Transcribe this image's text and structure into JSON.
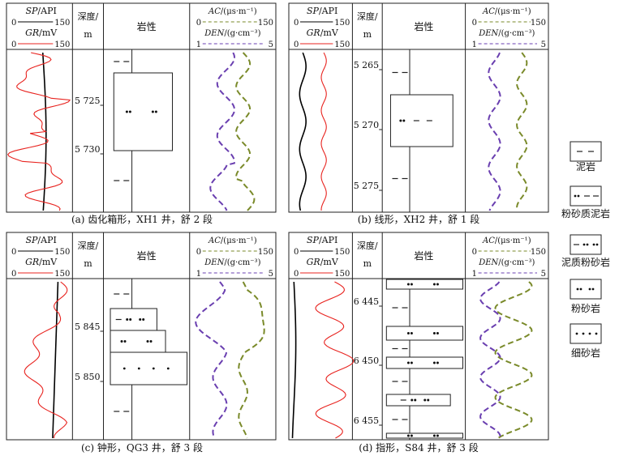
{
  "panels": [
    {
      "id": "a",
      "caption": "(a) 齿化箱形，XH1 井，舒 2 段",
      "depth_ticks": [
        "5 725",
        "5 730"
      ]
    },
    {
      "id": "b",
      "caption": "(b) 线形，XH2 井，舒 1 段",
      "depth_ticks": [
        "5 265",
        "5 270",
        "5 275"
      ]
    },
    {
      "id": "c",
      "caption": "(c) 钟形，QG3 井，舒 3 段",
      "depth_ticks": [
        "5 845",
        "5 850"
      ]
    },
    {
      "id": "d",
      "caption": "(d) 指形，S84 井，舒 3 段",
      "depth_ticks": [
        "6 445",
        "6 450",
        "6 455"
      ]
    }
  ],
  "headers": {
    "sp": "SP/API",
    "gr": "GR/mV",
    "sp_range_lo": "0",
    "sp_range_hi": "150",
    "gr_range_lo": "0",
    "gr_range_hi": "150",
    "depth_line1": "深度/",
    "depth_line2": "m",
    "lith": "岩性",
    "ac": "AC/(μs·m⁻¹)",
    "ac_lo": "0",
    "ac_hi": "150",
    "den": "DEN/(g·cm⁻³)",
    "den_lo": "1",
    "den_hi": "5"
  },
  "legend": [
    {
      "key": "mudstone",
      "label": "泥岩"
    },
    {
      "key": "silty_mudstone",
      "label": "粉砂质泥岩"
    },
    {
      "key": "muddy_siltstone",
      "label": "泥质粉砂岩"
    },
    {
      "key": "siltstone",
      "label": "粉砂岩"
    },
    {
      "key": "fine_sandstone",
      "label": "细砂岩"
    }
  ],
  "colors": {
    "sp_curve": "#000000",
    "gr_curve": "#e8231f",
    "ac_curve": "#7a8a2a",
    "den_curve": "#6a3fb0",
    "frame": "#222222"
  }
}
